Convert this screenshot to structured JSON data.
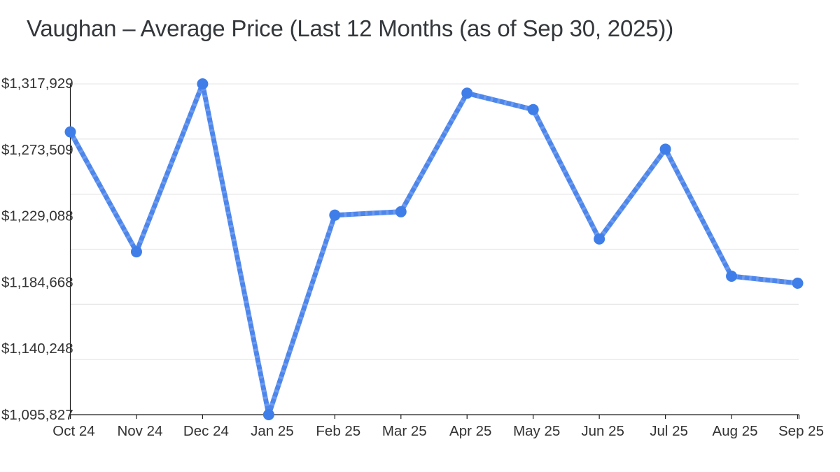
{
  "title_bar": {
    "title": "Vaughan – Average Price (Last 12 Months (as of Sep 30, 2025))"
  },
  "colors": {
    "background": "#ffffff",
    "line": "#4d86eb",
    "line_stripe": "#7ca4f0",
    "point": "#3f7ee8",
    "gridline": "#e9e9e9",
    "axis": "#1c1c1c",
    "tick_label": "#333333",
    "title_text": "#33373b"
  },
  "chart_data": {
    "type": "line",
    "title": "Vaughan – Average Price (Last 12 Months (as of Sep 30, 2025))",
    "categories": [
      "Oct 24",
      "Nov 24",
      "Dec 24",
      "Jan 25",
      "Feb 25",
      "Mar 25",
      "Apr 25",
      "May 25",
      "Jun 25",
      "Jul 25",
      "Aug 25",
      "Sep 25"
    ],
    "series": [
      {
        "name": "Average Price",
        "values": [
          1285700,
          1205200,
          1317929,
          1095827,
          1229800,
          1232100,
          1311700,
          1300700,
          1213800,
          1274100,
          1188800,
          1184100
        ]
      }
    ],
    "xlabel": "",
    "ylabel": "",
    "y_min": 1095827,
    "y_max": 1317929,
    "y_tick_labels": [
      "$1,317,929",
      "$1,273,509",
      "$1,229,088",
      "$1,184,668",
      "$1,140,248",
      "$1,095,827"
    ],
    "grid": true,
    "gridline_count": 7,
    "legend": false
  }
}
